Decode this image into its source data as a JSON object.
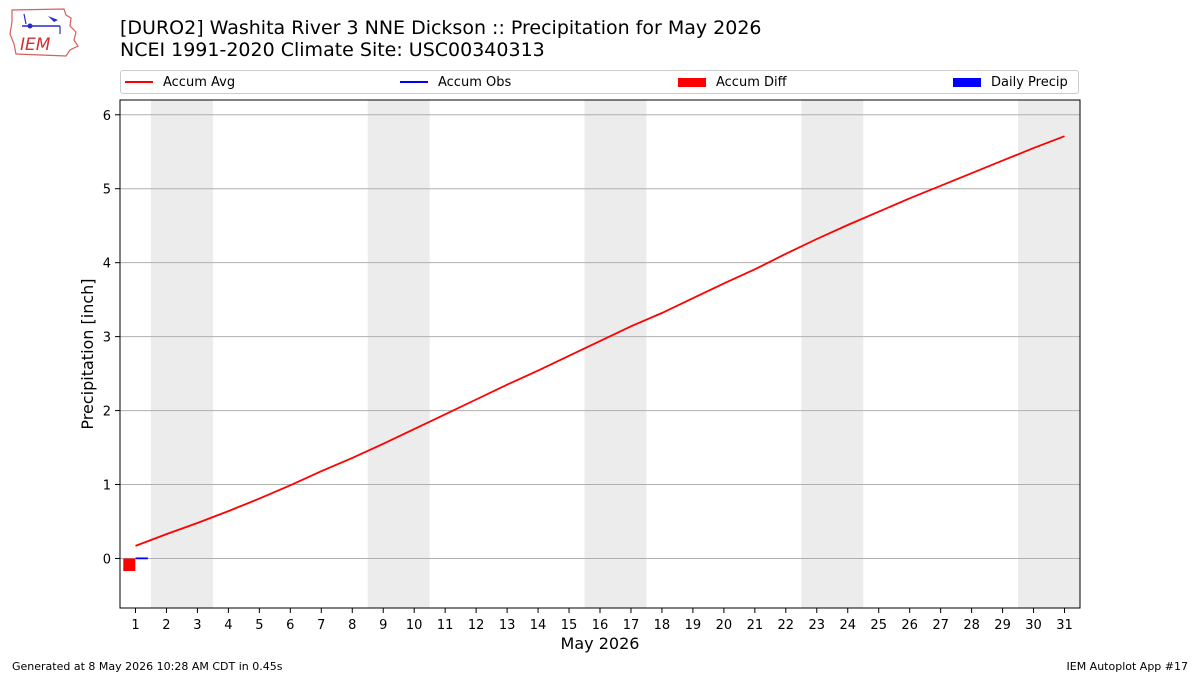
{
  "header": {
    "title_line1": "[DURO2] Washita River 3 NNE Dickson :: Precipitation for May 2026",
    "title_line2": "NCEI 1991-2020 Climate Site: USC00340313"
  },
  "logo": {
    "text": "IEM"
  },
  "footer": {
    "generated": "Generated at 8 May 2026 10:28 AM CDT in 0.45s",
    "app": "IEM Autoplot App #17"
  },
  "colors": {
    "accum_avg": "#ff0000",
    "accum_obs": "#0000ff",
    "accum_diff": "#ff0000",
    "daily_precip": "#0000ff",
    "weekend_band": "#ececec",
    "grid": "#b0b0b0"
  },
  "chart_data": {
    "type": "line",
    "xlabel": "May 2026",
    "ylabel": "Precipitation [inch]",
    "xlim": [
      0.5,
      31.5
    ],
    "ylim": [
      -0.67,
      6.2
    ],
    "x": [
      1,
      2,
      3,
      4,
      5,
      6,
      7,
      8,
      9,
      10,
      11,
      12,
      13,
      14,
      15,
      16,
      17,
      18,
      19,
      20,
      21,
      22,
      23,
      24,
      25,
      26,
      27,
      28,
      29,
      30,
      31
    ],
    "x_tick_labels": [
      "1",
      "2",
      "3",
      "4",
      "5",
      "6",
      "7",
      "8",
      "9",
      "10",
      "11",
      "12",
      "13",
      "14",
      "15",
      "16",
      "17",
      "18",
      "19",
      "20",
      "21",
      "22",
      "23",
      "24",
      "25",
      "26",
      "27",
      "28",
      "29",
      "30",
      "31"
    ],
    "y_ticks": [
      0,
      1,
      2,
      3,
      4,
      5,
      6
    ],
    "grid": "horizontal",
    "legend_position": "top",
    "weekend_bands": [
      [
        1.5,
        3.5
      ],
      [
        8.5,
        10.5
      ],
      [
        15.5,
        17.5
      ],
      [
        22.5,
        24.5
      ],
      [
        29.5,
        31.5
      ]
    ],
    "series": [
      {
        "name": "Accum Avg",
        "kind": "line",
        "values": [
          0.17,
          0.33,
          0.48,
          0.64,
          0.81,
          0.99,
          1.18,
          1.36,
          1.55,
          1.75,
          1.95,
          2.15,
          2.35,
          2.54,
          2.74,
          2.94,
          3.14,
          3.32,
          3.52,
          3.72,
          3.91,
          4.12,
          4.32,
          4.51,
          4.69,
          4.87,
          5.04,
          5.21,
          5.38,
          5.55,
          5.71
        ]
      },
      {
        "name": "Accum Obs",
        "kind": "line",
        "x": [
          1,
          1.4
        ],
        "values": [
          0.0,
          0.0
        ]
      },
      {
        "name": "Accum Diff",
        "kind": "bar",
        "x": [
          0.8
        ],
        "values": [
          -0.17
        ]
      },
      {
        "name": "Daily Precip",
        "kind": "bar",
        "x": [
          1.2
        ],
        "values": [
          0.0
        ]
      }
    ]
  }
}
